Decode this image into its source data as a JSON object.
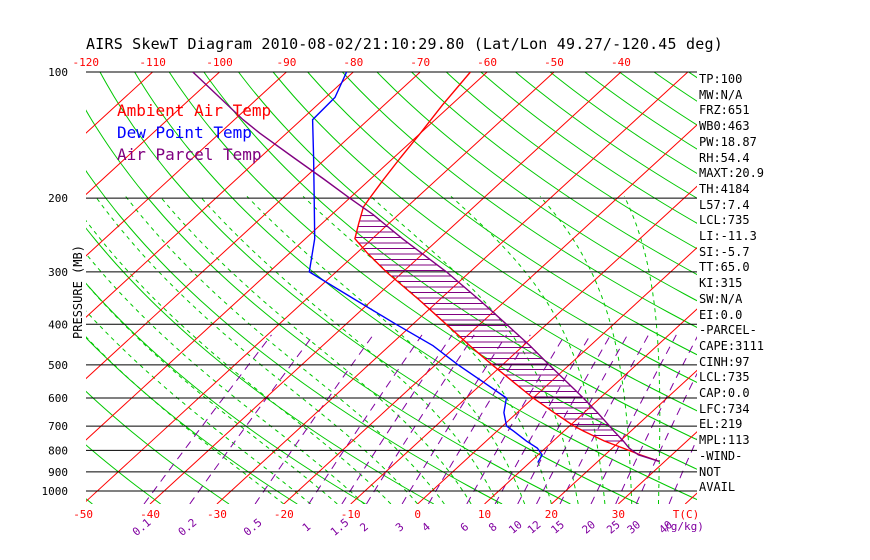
{
  "chart_data": {
    "type": "line",
    "title": "AIRS SkewT Diagram 2010-08-02/21:10:29.80 (Lat/Lon 49.27/-120.45 deg)",
    "ylabel": "PRESSURE (MB)",
    "y_scale": "log",
    "ylim": [
      1000,
      100
    ],
    "xlim_bottom": [
      -50,
      35
    ],
    "pressure_levels": [
      100,
      200,
      300,
      400,
      500,
      600,
      700,
      800,
      900,
      1000
    ],
    "pressure_labels": [
      "100",
      "200",
      "300",
      "400",
      "500",
      "600",
      "700",
      "800",
      "900",
      "1000"
    ],
    "bottom_temp_ticks": [
      "-50",
      "-40",
      "-30",
      "-20",
      "-10",
      "0",
      "10",
      "20",
      "30"
    ],
    "bottom_temp_values": [
      -50,
      -40,
      -30,
      -20,
      -10,
      0,
      10,
      20,
      30
    ],
    "top_temp_ticks": [
      "-120",
      "-110",
      "-100",
      "-90",
      "-80",
      "-70",
      "-60",
      "-50",
      "-40"
    ],
    "top_temp_values": [
      -120,
      -110,
      -100,
      -90,
      -80,
      -70,
      -60,
      -50,
      -40
    ],
    "mixing_ratio_labels": [
      "0.1",
      "0.2",
      "0.5",
      "1",
      "1.5",
      "2",
      "3",
      "4",
      "6",
      "8",
      "10",
      "12",
      "15",
      "20",
      "25",
      "30",
      "40"
    ],
    "mixing_ratio_values": [
      0.1,
      0.2,
      0.5,
      1,
      1.5,
      2,
      3,
      4,
      6,
      8,
      10,
      12,
      15,
      20,
      25,
      30,
      40
    ],
    "temp_unit_label": "T(C)",
    "mixing_ratio_unit_label": "(g/kg)",
    "series": [
      {
        "name": "Ambient Air Temp",
        "color": "#ff0000",
        "pressure": [
          850,
          820,
          790,
          760,
          720,
          700,
          650,
          600,
          550,
          500,
          450,
          400,
          350,
          300,
          270,
          250,
          230,
          210,
          200,
          180,
          160,
          140,
          120,
          100
        ],
        "temp": [
          29.2,
          25.3,
          21.6,
          17.7,
          13.0,
          10.7,
          5.5,
          0.0,
          -5.5,
          -11.5,
          -18.0,
          -25.0,
          -33.0,
          -42.5,
          -48.5,
          -52.6,
          -54.5,
          -56.5,
          -57.0,
          -58.0,
          -59.0,
          -60.0,
          -61.3,
          -62.5
        ]
      },
      {
        "name": "Dew Point Temp",
        "color": "#0000ff",
        "pressure": [
          855,
          820,
          790,
          760,
          720,
          700,
          650,
          600,
          550,
          500,
          450,
          400,
          350,
          300,
          250,
          200,
          160,
          130,
          115,
          100
        ],
        "temp": [
          11.2,
          10.6,
          8.8,
          6.0,
          2.5,
          0.6,
          -2.0,
          -4.0,
          -10.0,
          -16.6,
          -23.5,
          -32.5,
          -42.5,
          -54.0,
          -58.6,
          -65.3,
          -72.0,
          -78.3,
          -78.6,
          -81.0
        ]
      },
      {
        "name": "Air Parcel Temp",
        "color": "#800080",
        "pressure": [
          850,
          820,
          790,
          760,
          720,
          700,
          650,
          600,
          550,
          500,
          450,
          400,
          350,
          300,
          250,
          219,
          200,
          180,
          160,
          140,
          130,
          100
        ],
        "temp": [
          29.2,
          25.0,
          22.5,
          20.5,
          17.5,
          16.0,
          12.0,
          7.5,
          2.5,
          -3.0,
          -9.0,
          -16.0,
          -24.0,
          -33.5,
          -45.5,
          -53.8,
          -60.0,
          -67.0,
          -75.0,
          -84.0,
          -88.7,
          -104.0
        ]
      }
    ]
  },
  "legend": [
    {
      "label": "Ambient Air Temp",
      "color": "#ff0000"
    },
    {
      "label": "Dew Point Temp",
      "color": "#0000ff"
    },
    {
      "label": "Air Parcel Temp",
      "color": "#800080"
    }
  ],
  "stats": [
    "TP:100",
    "MW:N/A",
    "FRZ:651",
    "WB0:463",
    "PW:18.87",
    "RH:54.4",
    "MAXT:20.9",
    "TH:4184",
    "L57:7.4",
    "LCL:735",
    "LI:-11.3",
    "SI:-5.7",
    "TT:65.0",
    "KI:315",
    "SW:N/A",
    "EI:0.0",
    "-PARCEL-",
    "CAPE:3111",
    "CINH:97",
    "LCL:735",
    "CAP:0.0",
    "LFC:734",
    "EL:219",
    "MPL:113",
    "-WIND-",
    "NOT",
    "AVAIL"
  ],
  "colors": {
    "isotherm": "#ff0000",
    "dry_adiabat": "#00c800",
    "moist_adiabat": "#00c800",
    "mixing_ratio": "#8000a0",
    "isobar": "#000000",
    "axis_text": "#ff0000",
    "mixing_text": "#8000a0",
    "cape_hatch": "#800080"
  }
}
